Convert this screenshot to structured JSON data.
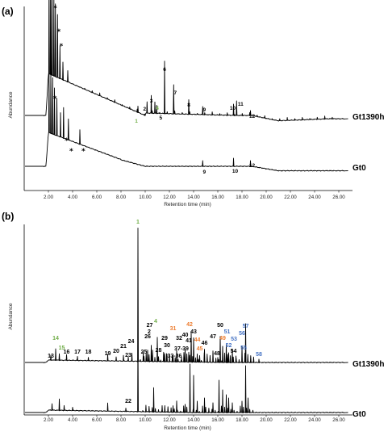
{
  "colors": {
    "green": "#70ad47",
    "orange": "#ed7d31",
    "blue": "#4472c4",
    "black": "#000000"
  },
  "chart_data": [
    {
      "panel": "(a)",
      "type": "line",
      "xlabel": "Retention time (min)",
      "ylabel": "Abundance",
      "xlim": [
        0,
        27
      ],
      "x_ticks": [
        "2.00",
        "4.00",
        "6.00",
        "8.00",
        "10.00",
        "12.00",
        "14.00",
        "16.00",
        "18.00",
        "20.00",
        "22.00",
        "24.00",
        "26.00"
      ],
      "series": [
        {
          "name": "Gt1390h",
          "peaks": [
            {
              "label": "1",
              "x": 9.4,
              "color": "green"
            },
            {
              "label": "2",
              "x": 10.15,
              "color": "black"
            },
            {
              "label": "3",
              "x": 10.5,
              "color": "black"
            },
            {
              "label": "4",
              "x": 10.8,
              "color": "green"
            },
            {
              "label": "5",
              "x": 10.95,
              "color": "black"
            },
            {
              "label": "6",
              "x": 11.6,
              "color": "black"
            },
            {
              "label": "7",
              "x": 12.35,
              "color": "black"
            },
            {
              "label": "8",
              "x": 13.6,
              "color": "black"
            },
            {
              "label": "9",
              "x": 14.75,
              "color": "black"
            },
            {
              "label": "10",
              "x": 17.3,
              "color": "black"
            },
            {
              "label": "11",
              "x": 17.55,
              "color": "black"
            },
            {
              "label": "12",
              "x": 18.7,
              "color": "black"
            }
          ],
          "asterisks": [
            2.2,
            2.5,
            2.7
          ]
        },
        {
          "name": "Gt0",
          "peaks": [
            {
              "label": "9",
              "x": 14.75,
              "color": "black"
            },
            {
              "label": "10",
              "x": 17.3,
              "color": "black"
            },
            {
              "label": "12",
              "x": 18.7,
              "color": "black"
            }
          ],
          "asterisks": [
            2.25,
            3.2,
            3.6,
            4.6
          ]
        }
      ]
    },
    {
      "panel": "(b)",
      "type": "line",
      "xlabel": "Retention time (min)",
      "ylabel": "Abundance",
      "xlim": [
        0,
        27
      ],
      "x_ticks": [
        "2.00",
        "4.00",
        "6.00",
        "8.00",
        "10.00",
        "12.00",
        "14.00",
        "16.00",
        "18.00",
        "20.00",
        "22.00",
        "24.00",
        "26.00"
      ],
      "series": [
        {
          "name": "Gt1390h",
          "peaks": [
            {
              "label": "1",
              "x": 9.4,
              "color": "green"
            },
            {
              "label": "2",
              "x": 10.6,
              "color": "black"
            },
            {
              "label": "4",
              "x": 11.0,
              "color": "green"
            },
            {
              "label": "13",
              "x": 2.2,
              "color": "black"
            },
            {
              "label": "14",
              "x": 2.6,
              "color": "green"
            },
            {
              "label": "15",
              "x": 2.9,
              "color": "green"
            },
            {
              "label": "16",
              "x": 3.5,
              "color": "black"
            },
            {
              "label": "17",
              "x": 4.4,
              "color": "black"
            },
            {
              "label": "18",
              "x": 5.3,
              "color": "black"
            },
            {
              "label": "19",
              "x": 6.9,
              "color": "black"
            },
            {
              "label": "20",
              "x": 7.6,
              "color": "black"
            },
            {
              "label": "21",
              "x": 8.2,
              "color": "black"
            },
            {
              "label": "23",
              "x": 8.6,
              "color": "black"
            },
            {
              "label": "24",
              "x": 8.9,
              "color": "black"
            },
            {
              "label": "25",
              "x": 9.9,
              "color": "black"
            },
            {
              "label": "26",
              "x": 10.2,
              "color": "black"
            },
            {
              "label": "27",
              "x": 10.5,
              "color": "black"
            },
            {
              "label": "28",
              "x": 11.1,
              "color": "black"
            },
            {
              "label": "29",
              "x": 11.6,
              "color": "black"
            },
            {
              "label": "30",
              "x": 11.8,
              "color": "black"
            },
            {
              "label": "31",
              "x": 12.3,
              "color": "orange"
            },
            {
              "label": "32",
              "x": 12.6,
              "color": "black"
            },
            {
              "label": "33-36",
              "x": 12.3,
              "color": "black"
            },
            {
              "label": "37-39",
              "x": 13.0,
              "color": "black"
            },
            {
              "label": "40",
              "x": 13.3,
              "color": "black"
            },
            {
              "label": "41",
              "x": 13.6,
              "color": "black"
            },
            {
              "label": "42",
              "x": 13.8,
              "color": "orange"
            },
            {
              "label": "43",
              "x": 14.0,
              "color": "black"
            },
            {
              "label": "44",
              "x": 14.3,
              "color": "orange"
            },
            {
              "label": "45",
              "x": 14.5,
              "color": "orange"
            },
            {
              "label": "46",
              "x": 14.9,
              "color": "black"
            },
            {
              "label": "47",
              "x": 15.6,
              "color": "black"
            },
            {
              "label": "48",
              "x": 16.0,
              "color": "black"
            },
            {
              "label": "49",
              "x": 16.4,
              "color": "orange"
            },
            {
              "label": "50",
              "x": 16.2,
              "color": "black"
            },
            {
              "label": "51",
              "x": 16.7,
              "color": "blue"
            },
            {
              "label": "52",
              "x": 16.9,
              "color": "blue"
            },
            {
              "label": "53",
              "x": 17.2,
              "color": "blue"
            },
            {
              "label": "54",
              "x": 17.5,
              "color": "black"
            },
            {
              "label": "55",
              "x": 18.0,
              "color": "blue"
            },
            {
              "label": "56",
              "x": 18.0,
              "color": "blue"
            },
            {
              "label": "57",
              "x": 18.3,
              "color": "blue"
            },
            {
              "label": "58",
              "x": 19.4,
              "color": "blue"
            }
          ]
        },
        {
          "name": "Gt0",
          "peaks": [
            {
              "label": "22",
              "x": 8.4,
              "color": "black"
            }
          ]
        }
      ]
    }
  ]
}
